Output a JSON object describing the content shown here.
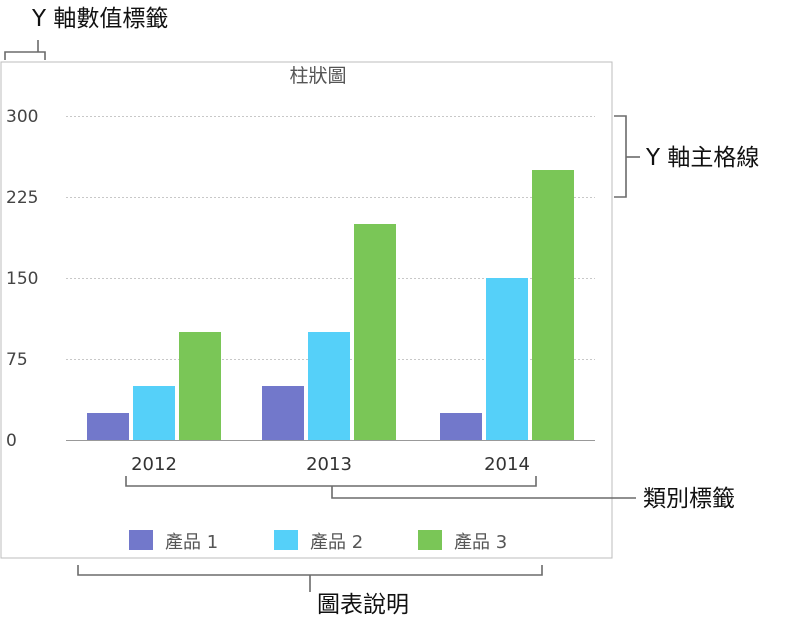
{
  "chart_data": {
    "type": "bar",
    "title": "柱狀圖",
    "categories": [
      "2012",
      "2013",
      "2014"
    ],
    "series": [
      {
        "name": "產品 1",
        "color": "#7278cb",
        "values": [
          25,
          50,
          25
        ]
      },
      {
        "name": "產品 2",
        "color": "#55d0f9",
        "values": [
          50,
          100,
          150
        ]
      },
      {
        "name": "產品 3",
        "color": "#7ac657",
        "values": [
          100,
          200,
          250
        ]
      }
    ],
    "ylim": [
      0,
      300
    ],
    "yticks": [
      "0",
      "75",
      "150",
      "225",
      "300"
    ],
    "grid": true,
    "legend": "bottom"
  },
  "annotations": {
    "y_value_labels": "Y 軸數值標籤",
    "y_major_gridlines": "Y 軸主格線",
    "category_labels": "類別標籤",
    "legend": "圖表說明"
  }
}
